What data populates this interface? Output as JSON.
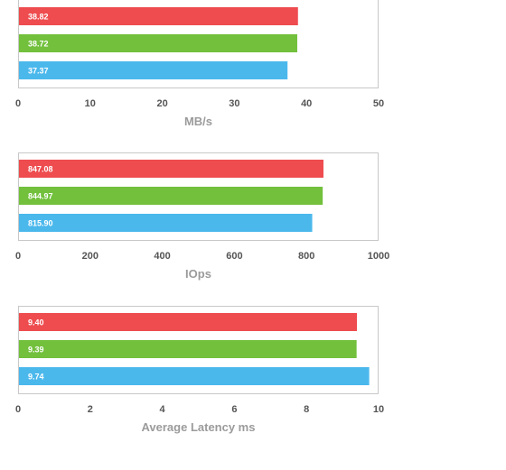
{
  "chart_data": [
    {
      "type": "bar",
      "orientation": "horizontal",
      "xlabel": "MB/s",
      "xlim": [
        0,
        50
      ],
      "ticks": [
        "0",
        "10",
        "20",
        "30",
        "40",
        "50"
      ],
      "values": [
        38.82,
        38.72,
        37.37
      ],
      "value_labels": [
        "38.82",
        "38.72",
        "37.37"
      ],
      "colors": [
        "#ee4c4f",
        "#72c03c",
        "#4bb8ec"
      ],
      "grid": false
    },
    {
      "type": "bar",
      "orientation": "horizontal",
      "xlabel": "IOps",
      "xlim": [
        0,
        1000
      ],
      "ticks": [
        "0",
        "200",
        "400",
        "600",
        "800",
        "1000"
      ],
      "values": [
        847.08,
        844.97,
        815.9
      ],
      "value_labels": [
        "847.08",
        "844.97",
        "815.90"
      ],
      "colors": [
        "#ee4c4f",
        "#72c03c",
        "#4bb8ec"
      ],
      "grid": false
    },
    {
      "type": "bar",
      "orientation": "horizontal",
      "xlabel": "Average Latency ms",
      "xlim": [
        0,
        10
      ],
      "ticks": [
        "0",
        "2",
        "4",
        "6",
        "8",
        "10"
      ],
      "values": [
        9.4,
        9.39,
        9.74
      ],
      "value_labels": [
        "9.40",
        "9.39",
        "9.74"
      ],
      "colors": [
        "#ee4c4f",
        "#72c03c",
        "#4bb8ec"
      ],
      "grid": false
    }
  ]
}
